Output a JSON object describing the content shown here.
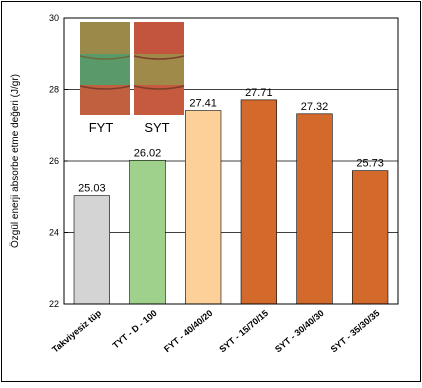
{
  "chart_data": {
    "type": "bar",
    "categories": [
      "Takviyesiz tüp",
      "TYT - D - 100",
      "FYT - 40/40/20",
      "SYT - 15/70/15",
      "SYT - 30/40/30",
      "SYT - 35/30/35"
    ],
    "values": [
      25.03,
      26.02,
      27.41,
      27.71,
      27.32,
      25.73
    ],
    "value_labels": [
      "25.03",
      "26.02",
      "27.41",
      "27.71",
      "27.32",
      "25.73"
    ],
    "colors": [
      "#d4d4d4",
      "#9fd08c",
      "#fdd09a",
      "#d4692c",
      "#d4692c",
      "#d4692c"
    ],
    "ylabel": "Özgül enerji absorbe etme değeri (J/gr)",
    "xlabel": "",
    "title": "",
    "ylim": [
      22,
      30
    ],
    "yticks": [
      "22",
      "24",
      "26",
      "28",
      "30"
    ],
    "grid": true
  },
  "inset": {
    "label_left": "FYT",
    "label_right": "SYT"
  }
}
